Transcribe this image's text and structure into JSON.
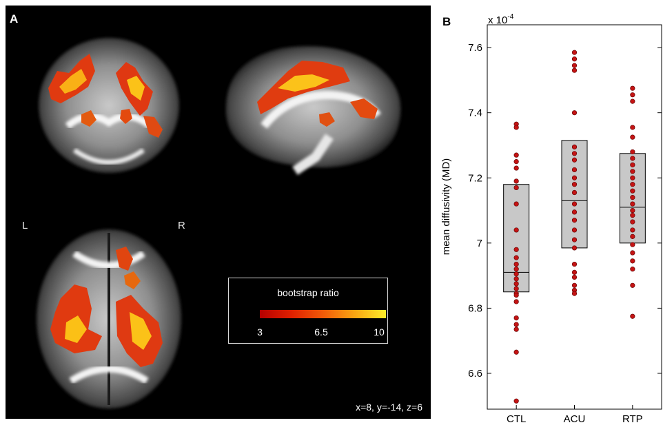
{
  "panel_a": {
    "letter": "A",
    "orientation": {
      "left": "L",
      "right": "R"
    },
    "colorbar": {
      "title": "bootstrap ratio",
      "ticks": [
        "3",
        "6.5",
        "10"
      ]
    },
    "coords": "x=8, y=-14, z=6"
  },
  "panel_b": {
    "letter": "B"
  },
  "chart_data": {
    "type": "box",
    "ylabel": "mean diffusivity (MD)",
    "y_multiplier": "x 10",
    "y_multiplier_exp": "-4",
    "ylim": [
      6.49,
      7.67
    ],
    "yticks": [
      "6.6",
      "6.8",
      "7",
      "7.2",
      "7.4",
      "7.6"
    ],
    "categories": [
      "CTL",
      "ACU",
      "RTP"
    ],
    "boxes": [
      {
        "q1": 6.85,
        "median": 6.91,
        "q3": 7.18
      },
      {
        "q1": 6.985,
        "median": 7.13,
        "q3": 7.315
      },
      {
        "q1": 7.0,
        "median": 7.11,
        "q3": 7.275
      }
    ],
    "points": [
      [
        7.365,
        7.355,
        7.27,
        7.25,
        7.23,
        7.19,
        7.17,
        7.12,
        7.04,
        6.98,
        6.955,
        6.935,
        6.92,
        6.905,
        6.89,
        6.875,
        6.86,
        6.845,
        6.84,
        6.82,
        6.77,
        6.75,
        6.735,
        6.665,
        6.515
      ],
      [
        7.585,
        7.565,
        7.545,
        7.53,
        7.4,
        7.295,
        7.275,
        7.255,
        7.225,
        7.2,
        7.18,
        7.155,
        7.12,
        7.095,
        7.07,
        7.04,
        7.01,
        6.985,
        6.935,
        6.91,
        6.895,
        6.87,
        6.855,
        6.845
      ],
      [
        7.475,
        7.455,
        7.435,
        7.355,
        7.325,
        7.28,
        7.26,
        7.24,
        7.22,
        7.2,
        7.18,
        7.16,
        7.14,
        7.12,
        7.1,
        7.085,
        7.065,
        7.04,
        7.02,
        6.995,
        6.97,
        6.945,
        6.92,
        6.87,
        6.775
      ]
    ],
    "colors": {
      "box_fill": "#c8c8c8",
      "point": "#c41414",
      "axis": "#000000"
    }
  }
}
